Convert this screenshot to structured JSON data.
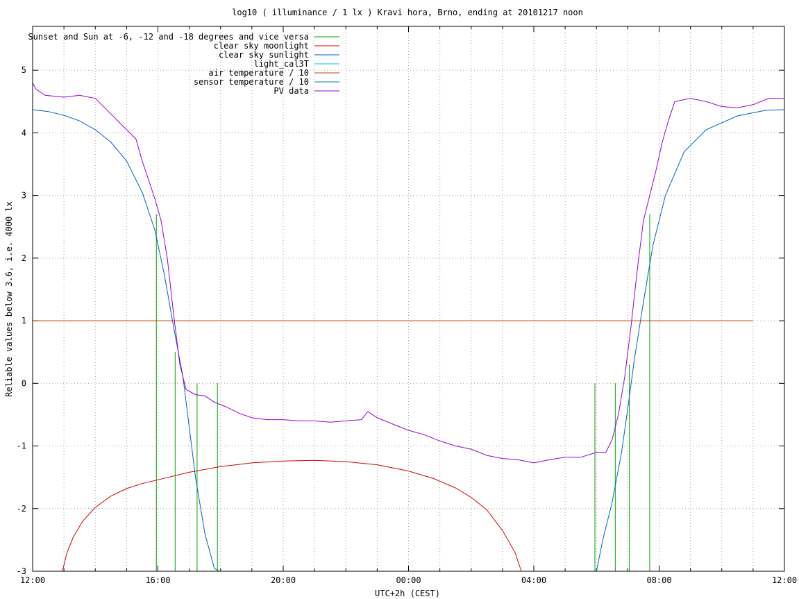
{
  "chart_data": {
    "type": "line",
    "title": "log10 ( illuminance / 1 lx ) Kravi hora, Brno, ending at 20101217 noon",
    "xlabel": "UTC+2h (CEST)",
    "ylabel": "Reliable values below 3.6, i.e. 4000 lx",
    "x_unit": "hours since 12:00",
    "xlim": [
      0,
      24
    ],
    "ylim": [
      -3,
      5.7
    ],
    "xticks": [
      {
        "x": 0,
        "label": "12:00"
      },
      {
        "x": 4,
        "label": "16:00"
      },
      {
        "x": 8,
        "label": "20:00"
      },
      {
        "x": 12,
        "label": "00:00"
      },
      {
        "x": 16,
        "label": "04:00"
      },
      {
        "x": 20,
        "label": "08:00"
      },
      {
        "x": 24,
        "label": "12:00"
      }
    ],
    "yticks": [
      {
        "y": -3,
        "label": "-3"
      },
      {
        "y": -2,
        "label": "-2"
      },
      {
        "y": -1,
        "label": "-1"
      },
      {
        "y": 0,
        "label": "0"
      },
      {
        "y": 1,
        "label": "1"
      },
      {
        "y": 2,
        "label": "2"
      },
      {
        "y": 3,
        "label": "3"
      },
      {
        "y": 4,
        "label": "4"
      },
      {
        "y": 5,
        "label": "5"
      }
    ],
    "grid": true,
    "legend_position": "top-left",
    "series": [
      {
        "name": "Sunset and Sun at -6, -12 and -18 degrees and vice versa",
        "color": "#00a000",
        "type": "impulses",
        "points": [
          [
            3.95,
            2.7
          ],
          [
            4.55,
            0.5
          ],
          [
            5.25,
            0
          ],
          [
            5.9,
            0
          ],
          [
            17.95,
            0
          ],
          [
            18.6,
            0
          ],
          [
            19.05,
            0.3
          ],
          [
            19.7,
            2.7
          ]
        ]
      },
      {
        "name": "clear sky moonlight",
        "color": "#d00000",
        "x": [
          0.95,
          1.1,
          1.3,
          1.6,
          2.0,
          2.5,
          3.0,
          3.5,
          4.0,
          5.0,
          6.0,
          7.0,
          8.0,
          9.0,
          10.0,
          11.0,
          12.0,
          12.8,
          13.5,
          14.0,
          14.5,
          15.0,
          15.4,
          15.6
        ],
        "y": [
          -3.0,
          -2.7,
          -2.45,
          -2.2,
          -1.98,
          -1.8,
          -1.68,
          -1.6,
          -1.54,
          -1.42,
          -1.33,
          -1.27,
          -1.24,
          -1.23,
          -1.25,
          -1.3,
          -1.4,
          -1.52,
          -1.67,
          -1.82,
          -2.02,
          -2.35,
          -2.7,
          -3.0
        ]
      },
      {
        "name": "clear sky sunlight",
        "color": "#0060c0",
        "x": [
          0,
          0.5,
          1.0,
          1.5,
          2.0,
          2.5,
          3.0,
          3.5,
          3.9,
          4.2,
          4.5,
          4.8,
          5.0,
          5.2,
          5.5,
          5.8,
          5.95,
          18.0,
          18.2,
          18.5,
          18.8,
          19.0,
          19.2,
          19.5,
          19.8,
          20.2,
          20.8,
          21.5,
          22.5,
          23.4,
          24.0
        ],
        "y": [
          4.37,
          4.34,
          4.28,
          4.19,
          4.05,
          3.85,
          3.55,
          3.05,
          2.45,
          1.75,
          0.9,
          0.1,
          -0.7,
          -1.5,
          -2.4,
          -2.95,
          -3.0,
          -3.0,
          -2.5,
          -1.9,
          -1.1,
          -0.4,
          0.35,
          1.3,
          2.2,
          3.0,
          3.7,
          4.05,
          4.27,
          4.36,
          4.37
        ]
      },
      {
        "name": "light_cal3T",
        "color": "#00c0e0",
        "x": [],
        "y": []
      },
      {
        "name": "air temperature / 10",
        "color": "#c04000",
        "x": [
          0,
          23.0
        ],
        "y": [
          1.0,
          1.0
        ]
      },
      {
        "name": "sensor temperature / 10",
        "color": "#0080a0",
        "x": [],
        "y": []
      },
      {
        "name": "PV data",
        "color": "#9400d3",
        "x": [
          0,
          0.1,
          0.4,
          1.0,
          1.5,
          2.0,
          2.3,
          2.5,
          2.8,
          3.0,
          3.3,
          3.5,
          3.7,
          3.9,
          4.1,
          4.3,
          4.5,
          4.7,
          4.9,
          5.2,
          5.5,
          5.8,
          6.2,
          6.6,
          7.0,
          7.5,
          8.0,
          8.5,
          9.0,
          9.5,
          10.0,
          10.5,
          10.7,
          11.0,
          11.5,
          12.0,
          12.5,
          13.0,
          13.5,
          14.0,
          14.5,
          15.0,
          15.5,
          16.0,
          16.5,
          17.0,
          17.5,
          18.0,
          18.3,
          18.5,
          18.7,
          18.9,
          19.1,
          19.3,
          19.5,
          19.7,
          19.9,
          20.1,
          20.3,
          20.5,
          21.0,
          21.5,
          22.0,
          22.5,
          23.0,
          23.5,
          24.0
        ],
        "y": [
          4.8,
          4.7,
          4.6,
          4.57,
          4.6,
          4.55,
          4.4,
          4.3,
          4.15,
          4.05,
          3.9,
          3.55,
          3.25,
          2.95,
          2.6,
          2.0,
          1.1,
          0.3,
          -0.1,
          -0.18,
          -0.2,
          -0.3,
          -0.38,
          -0.48,
          -0.55,
          -0.58,
          -0.58,
          -0.6,
          -0.6,
          -0.62,
          -0.6,
          -0.58,
          -0.45,
          -0.55,
          -0.65,
          -0.75,
          -0.82,
          -0.92,
          -1.0,
          -1.05,
          -1.15,
          -1.2,
          -1.22,
          -1.27,
          -1.22,
          -1.18,
          -1.18,
          -1.1,
          -1.1,
          -0.9,
          -0.5,
          0.1,
          0.9,
          1.8,
          2.6,
          3.0,
          3.4,
          3.85,
          4.2,
          4.5,
          4.55,
          4.5,
          4.42,
          4.4,
          4.45,
          4.55,
          4.55
        ]
      }
    ]
  }
}
